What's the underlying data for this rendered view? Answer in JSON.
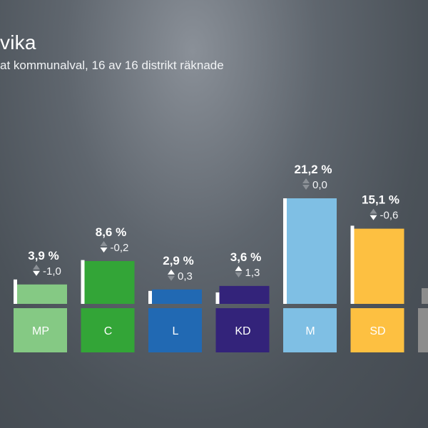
{
  "header": {
    "title": "vika",
    "subtitle": "at kommunalval, 16 av 16 distrikt räknade"
  },
  "chart_data": {
    "type": "bar",
    "categories": [
      "MP",
      "C",
      "L",
      "KD",
      "M",
      "SD",
      ""
    ],
    "values": [
      3.9,
      8.6,
      2.9,
      3.6,
      21.2,
      15.1,
      null
    ],
    "previous_values": [
      4.9,
      8.8,
      2.6,
      2.3,
      21.2,
      15.7,
      null
    ],
    "value_labels": [
      "3,9 %",
      "8,6 %",
      "2,9 %",
      "3,6 %",
      "21,2 %",
      "15,1 %",
      ""
    ],
    "change_labels": [
      "-1,0",
      "-0,2",
      "0,3",
      "1,3",
      "0,0",
      "-0,6",
      ""
    ],
    "change_direction": [
      "down",
      "down",
      "up",
      "up",
      "none",
      "down",
      "none"
    ],
    "colors": [
      "#85c984",
      "#33a537",
      "#2169b3",
      "#33237a",
      "#7fbfe4",
      "#fdc041",
      "#8c8c8c"
    ],
    "ylim": [
      0,
      21.2
    ]
  }
}
